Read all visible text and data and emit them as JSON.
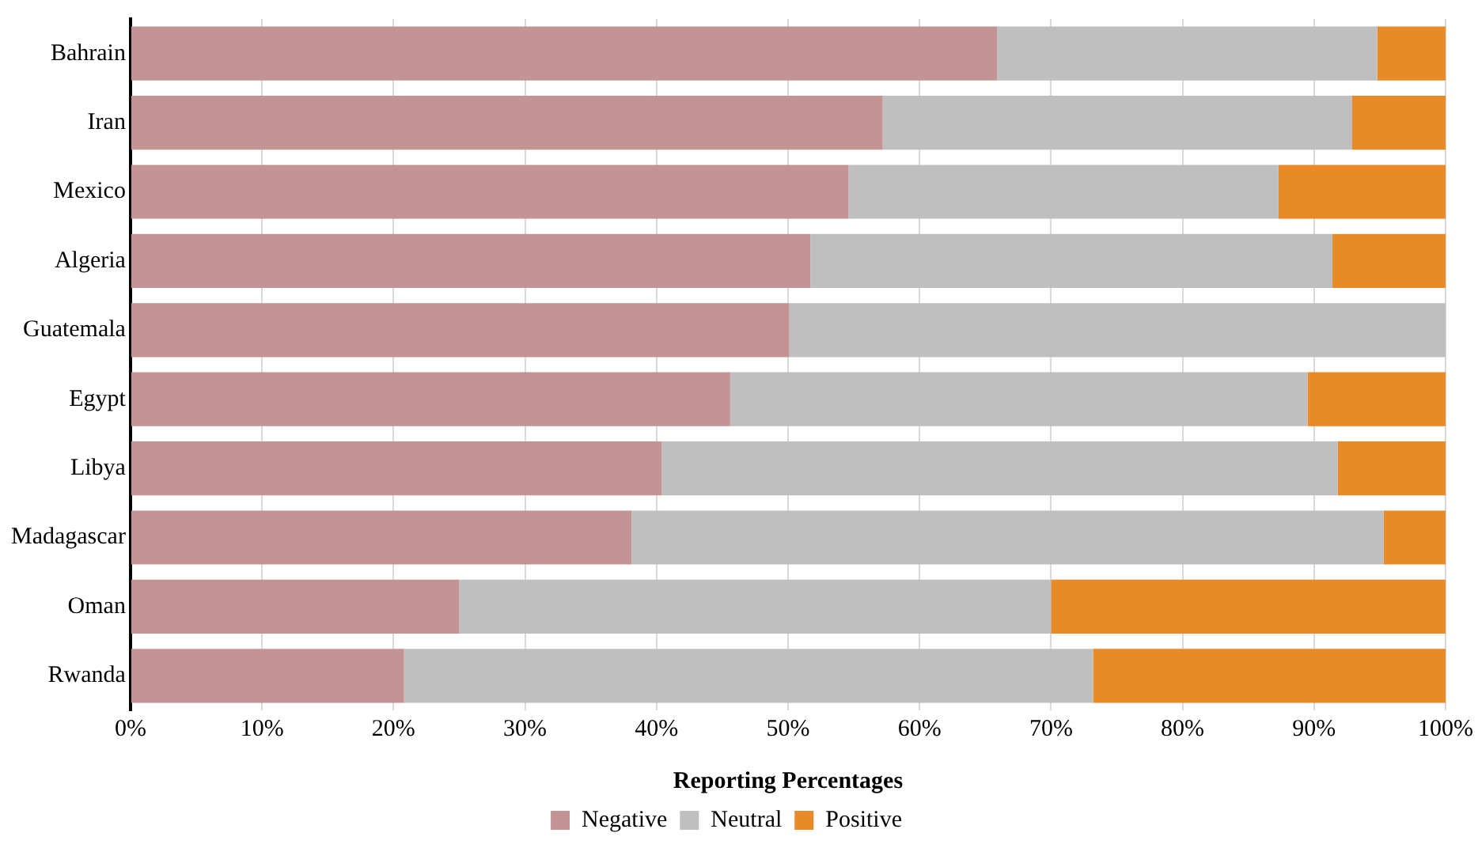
{
  "chart_data": {
    "type": "bar",
    "orientation": "horizontal",
    "stacked": true,
    "xlabel": "Reporting Percentages",
    "categories": [
      "Bahrain",
      "Iran",
      "Mexico",
      "Algeria",
      "Guatemala",
      "Egypt",
      "Libya",
      "Madagascar",
      "Oman",
      "Rwanda"
    ],
    "series": [
      {
        "name": "Negative",
        "color": "#c49494",
        "values": [
          65.9,
          57.2,
          54.6,
          51.7,
          50.1,
          45.6,
          40.4,
          38.1,
          25.0,
          20.8
        ]
      },
      {
        "name": "Neutral",
        "color": "#bfbfbf",
        "values": [
          28.9,
          35.7,
          32.7,
          39.7,
          49.9,
          43.9,
          51.4,
          57.2,
          45.0,
          52.4
        ]
      },
      {
        "name": "Positive",
        "color": "#e88a27",
        "values": [
          5.2,
          7.1,
          12.7,
          8.6,
          0,
          10.5,
          8.2,
          4.7,
          30.0,
          26.8
        ]
      }
    ],
    "xlim": [
      0,
      100
    ],
    "xticks": [
      {
        "value": 0,
        "label": "0%"
      },
      {
        "value": 10,
        "label": "10%"
      },
      {
        "value": 20,
        "label": "20%"
      },
      {
        "value": 30,
        "label": "30%"
      },
      {
        "value": 40,
        "label": "40%"
      },
      {
        "value": 50,
        "label": "50%"
      },
      {
        "value": 60,
        "label": "60%"
      },
      {
        "value": 70,
        "label": "70%"
      },
      {
        "value": 80,
        "label": "80%"
      },
      {
        "value": 90,
        "label": "90%"
      },
      {
        "value": 100,
        "label": "100%"
      }
    ],
    "grid": "x",
    "legend": "bottom"
  }
}
